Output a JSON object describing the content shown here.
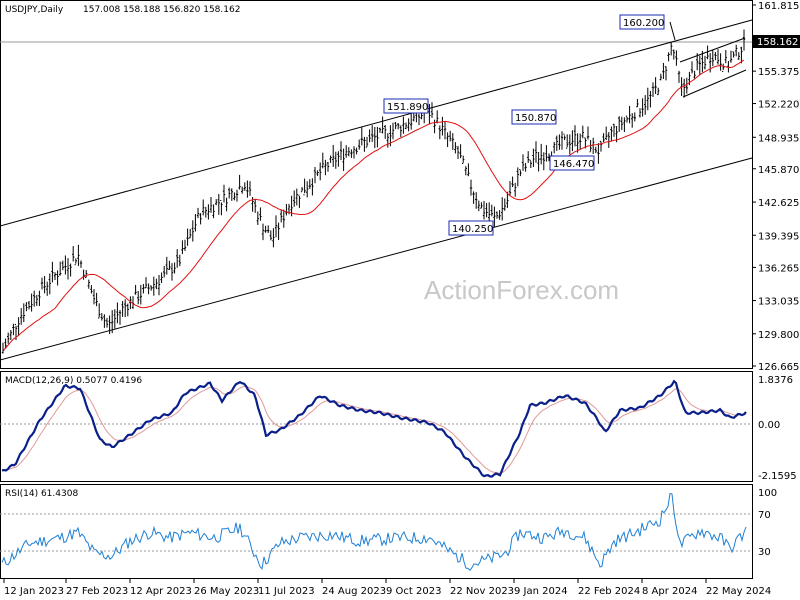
{
  "main": {
    "title": "USDJPY,Daily",
    "ohlc": "157.008 158.188 156.820 158.162",
    "current_price": "158.162",
    "y_ticks": [
      "161.815",
      "158.595",
      "155.375",
      "152.220",
      "148.935",
      "145.870",
      "142.625",
      "139.395",
      "136.265",
      "133.035",
      "129.800",
      "126.665"
    ],
    "ylim": [
      126.665,
      161.815
    ],
    "labels": [
      "160.200",
      "151.890",
      "150.870",
      "146.470",
      "140.250"
    ],
    "watermark": "ActionForex.com"
  },
  "macd": {
    "title": "MACD(12,26,9) 0.5077 0.4196",
    "y_ticks": [
      "1.8376",
      "0.00",
      "-2.1595"
    ],
    "ylim": [
      -2.1595,
      1.8376
    ]
  },
  "rsi": {
    "title": "RSI(14) 61.4308",
    "y_ticks": [
      "100",
      "70",
      "30"
    ]
  },
  "x_ticks": [
    "12 Jan 2023",
    "27 Feb 2023",
    "12 Apr 2023",
    "26 May 2023",
    "11 Jul 2023",
    "24 Aug 2023",
    "9 Oct 2023",
    "22 Nov 2023",
    "9 Jan 2024",
    "22 Feb 2024",
    "8 Apr 2024",
    "22 May 2024"
  ],
  "colors": {
    "ma": "#e01010",
    "macd": "#0b1f8a",
    "signal": "#e09a9a",
    "rsi": "#1f7fd4",
    "grid": "#9a9a9a",
    "frame": "#000000"
  },
  "chart_data": {
    "type": "line",
    "title": "USDJPY,Daily",
    "x": [
      "12 Jan 2023",
      "27 Feb 2023",
      "12 Apr 2023",
      "26 May 2023",
      "11 Jul 2023",
      "24 Aug 2023",
      "9 Oct 2023",
      "22 Nov 2023",
      "9 Jan 2024",
      "22 Feb 2024",
      "8 Apr 2024",
      "22 May 2024"
    ],
    "series": [
      {
        "values": [
          128.5,
          136.2,
          133.8,
          140.5,
          138.5,
          146.2,
          149.5,
          147.8,
          145.1,
          150.2,
          153.0,
          157.0
        ]
      },
      {
        "values": [
          130.5,
          133.2,
          134.0,
          137.8,
          141.2,
          143.5,
          147.0,
          149.0,
          145.8,
          147.5,
          151.0,
          155.0
        ]
      },
      {
        "values": [
          -1.5,
          1.1,
          -0.5,
          1.2,
          -0.3,
          0.8,
          0.7,
          -1.8,
          1.2,
          -0.2,
          1.6,
          0.5
        ]
      },
      {
        "values": [
          35,
          55,
          48,
          62,
          35,
          60,
          58,
          30,
          60,
          40,
          78,
          61.43
        ]
      }
    ],
    "ylim": [
      126.665,
      161.815
    ]
  }
}
